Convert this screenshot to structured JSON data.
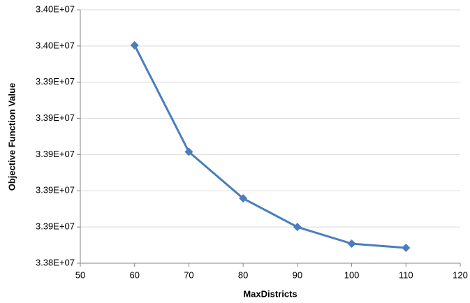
{
  "chart_data": {
    "type": "line",
    "x_label": "MaxDistricts",
    "y_label": "Objective Function Value",
    "x": [
      60,
      70,
      80,
      90,
      100,
      110
    ],
    "series": [
      {
        "color": "#4a7ebb",
        "values": [
          33960400,
          33901500,
          33875800,
          33860000,
          33850800,
          33848500
        ]
      }
    ],
    "xlim": [
      50,
      120
    ],
    "xticks": [
      50,
      60,
      70,
      80,
      90,
      100,
      110,
      120
    ],
    "ylim": [
      33840000,
      33980000
    ],
    "yticks": [
      {
        "value": 33840000,
        "label": "3.38E+07"
      },
      {
        "value": 33860000,
        "label": "3.39E+07"
      },
      {
        "value": 33880000,
        "label": "3.39E+07"
      },
      {
        "value": 33900000,
        "label": "3.39E+07"
      },
      {
        "value": 33920000,
        "label": "3.39E+07"
      },
      {
        "value": 33940000,
        "label": "3.39E+07"
      },
      {
        "value": 33960000,
        "label": "3.40E+07"
      },
      {
        "value": 33980000,
        "label": "3.40E+07"
      }
    ],
    "grid": true,
    "markers": "diamond"
  }
}
